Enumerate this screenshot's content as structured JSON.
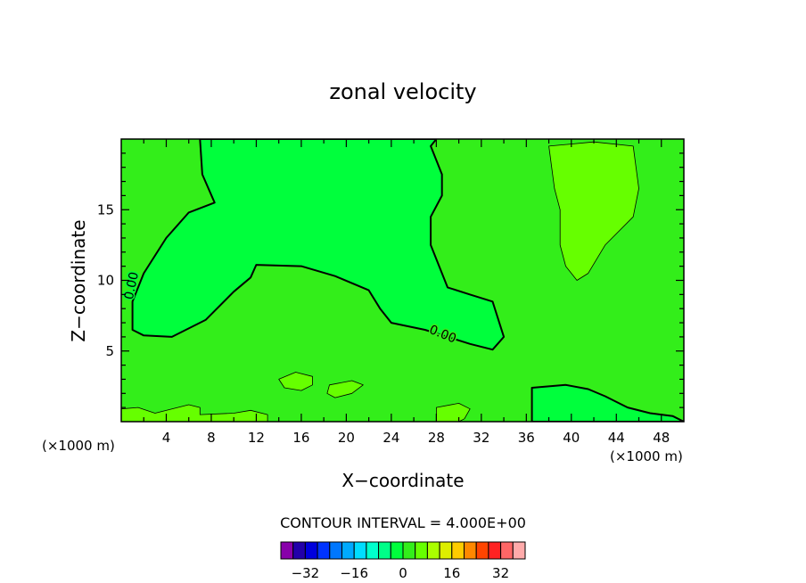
{
  "chart_data": {
    "type": "heatmap",
    "title": "zonal velocity",
    "xlabel": "X−coordinate",
    "ylabel": "Z−coordinate",
    "x_units": "(×1000 m)",
    "y_units": "(×1000 m)",
    "xlim": [
      0,
      50
    ],
    "ylim": [
      0,
      20
    ],
    "x_ticks": [
      4,
      8,
      12,
      16,
      20,
      24,
      28,
      32,
      36,
      40,
      44,
      48
    ],
    "y_ticks": [
      5,
      10,
      15
    ],
    "contour_interval_label": "CONTOUR INTERVAL = 4.000E+00",
    "background_level": 4,
    "background_color": "#33ee1a",
    "regions": [
      {
        "level": 0,
        "color": "#00ff3c",
        "label": "0.00",
        "points": [
          [
            7.0,
            20
          ],
          [
            7.2,
            17.5
          ],
          [
            8.3,
            15.5
          ],
          [
            6.0,
            14.8
          ],
          [
            4.0,
            13.0
          ],
          [
            2.0,
            10.5
          ],
          [
            1.0,
            8.5
          ],
          [
            1.0,
            6.5
          ],
          [
            2.0,
            6.1
          ],
          [
            4.5,
            6.0
          ],
          [
            7.5,
            7.2
          ],
          [
            10.0,
            9.2
          ],
          [
            11.5,
            10.2
          ],
          [
            12.0,
            11.1
          ],
          [
            16.0,
            11.0
          ],
          [
            19.0,
            10.3
          ],
          [
            22.0,
            9.3
          ],
          [
            23.0,
            8.0
          ],
          [
            24.0,
            7.0
          ],
          [
            27.0,
            6.5
          ],
          [
            29.0,
            6.0
          ],
          [
            31.0,
            5.5
          ],
          [
            33.0,
            5.1
          ],
          [
            34.0,
            6.0
          ],
          [
            33.0,
            8.5
          ],
          [
            31.0,
            9.0
          ],
          [
            29.0,
            9.5
          ],
          [
            27.5,
            12.5
          ],
          [
            27.5,
            14.5
          ],
          [
            28.5,
            16.0
          ],
          [
            28.5,
            17.5
          ],
          [
            27.5,
            19.5
          ],
          [
            28.0,
            20
          ]
        ]
      },
      {
        "level": 0,
        "color": "#00ff3c",
        "points": [
          [
            36.5,
            0
          ],
          [
            36.5,
            2.4
          ],
          [
            39.5,
            2.6
          ],
          [
            41.5,
            2.3
          ],
          [
            43.0,
            1.8
          ],
          [
            45.0,
            1.0
          ],
          [
            47.0,
            0.6
          ],
          [
            49.0,
            0.4
          ],
          [
            50,
            0
          ]
        ]
      },
      {
        "level": 8,
        "color": "#66ff00",
        "points": [
          [
            38.0,
            19.5
          ],
          [
            38.5,
            16.5
          ],
          [
            39.0,
            15.0
          ],
          [
            39.0,
            12.5
          ],
          [
            39.5,
            11.0
          ],
          [
            40.5,
            10.0
          ],
          [
            41.5,
            10.5
          ],
          [
            43.0,
            12.5
          ],
          [
            45.5,
            14.5
          ],
          [
            46.0,
            16.5
          ],
          [
            45.5,
            19.5
          ],
          [
            42.0,
            19.8
          ]
        ]
      },
      {
        "level": 8,
        "color": "#66ff00",
        "points": [
          [
            14.0,
            3.0
          ],
          [
            15.5,
            3.5
          ],
          [
            17.0,
            3.2
          ],
          [
            17.0,
            2.6
          ],
          [
            16.0,
            2.2
          ],
          [
            14.5,
            2.4
          ]
        ]
      },
      {
        "level": 8,
        "color": "#66ff00",
        "points": [
          [
            18.5,
            2.6
          ],
          [
            20.5,
            2.9
          ],
          [
            21.5,
            2.6
          ],
          [
            20.5,
            2.0
          ],
          [
            19.0,
            1.7
          ],
          [
            18.3,
            2.0
          ]
        ]
      },
      {
        "level": 8,
        "color": "#66ff00",
        "points": [
          [
            0,
            0
          ],
          [
            0,
            0.9
          ],
          [
            1.5,
            1.0
          ],
          [
            3.0,
            0.6
          ],
          [
            6.0,
            1.2
          ],
          [
            7.0,
            1.0
          ],
          [
            7.0,
            0.5
          ],
          [
            10.0,
            0.6
          ],
          [
            11.5,
            0.8
          ],
          [
            13.0,
            0.5
          ],
          [
            13.0,
            0
          ]
        ]
      },
      {
        "level": 8,
        "color": "#66ff00",
        "points": [
          [
            28.0,
            0
          ],
          [
            28.0,
            1.0
          ],
          [
            30.0,
            1.3
          ],
          [
            31.0,
            0.9
          ],
          [
            30.5,
            0.2
          ],
          [
            30.0,
            0
          ]
        ]
      }
    ],
    "colorbar": {
      "ticks": [
        -32,
        -16,
        0,
        16,
        32
      ],
      "levels": [
        -36,
        -32,
        -28,
        -24,
        -20,
        -16,
        -12,
        -8,
        -4,
        0,
        4,
        8,
        12,
        16,
        20,
        24,
        28,
        32,
        36
      ],
      "colors": [
        "#8800aa",
        "#2200aa",
        "#0000dd",
        "#0033ff",
        "#0077ff",
        "#00aaff",
        "#00ddff",
        "#00ffcc",
        "#00ff88",
        "#00ff3c",
        "#33ee1a",
        "#66ff00",
        "#aaff00",
        "#ddee00",
        "#ffcc00",
        "#ff8800",
        "#ff4400",
        "#ff2222",
        "#ff6666",
        "#ffaaaa"
      ]
    }
  }
}
